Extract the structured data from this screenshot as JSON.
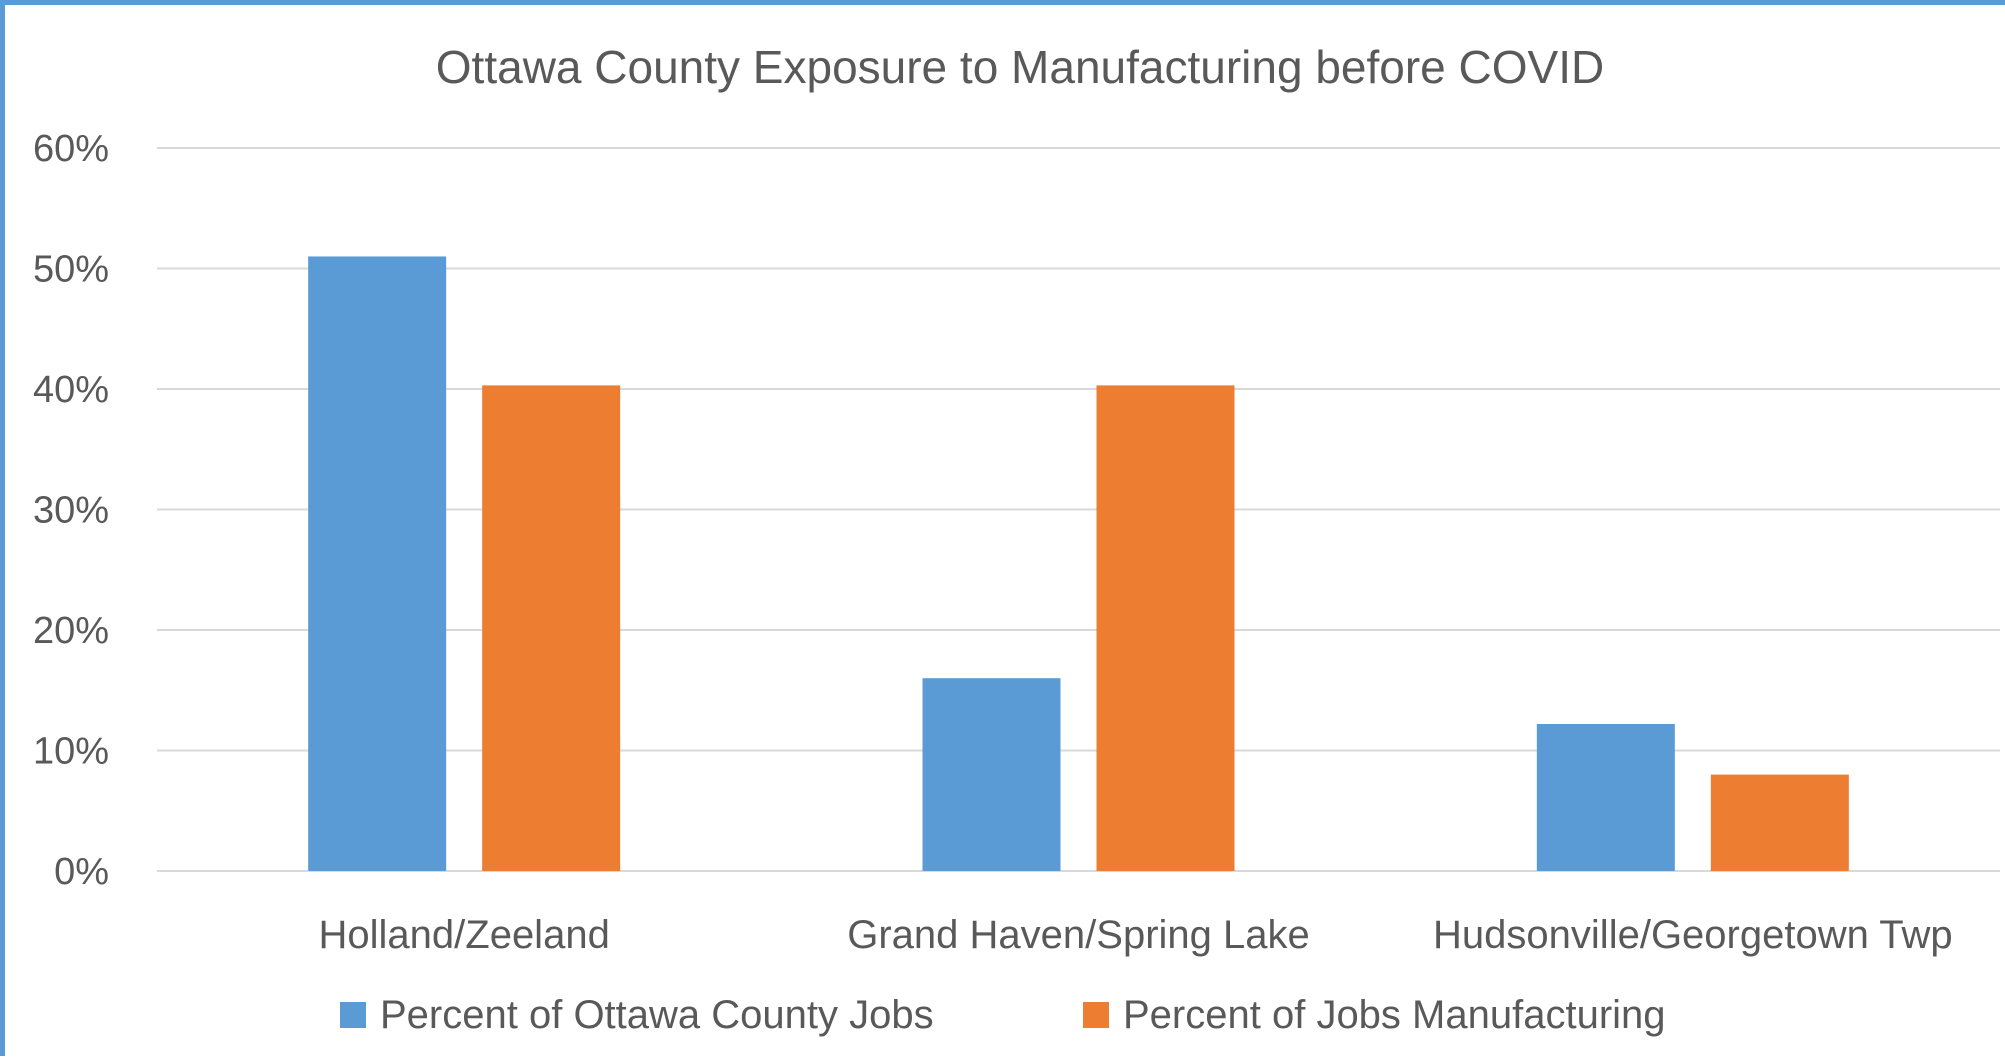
{
  "chart_data": {
    "type": "bar",
    "title": "Ottawa County Exposure to Manufacturing before COVID",
    "xlabel": "",
    "ylabel": "",
    "categories": [
      "Holland/Zeeland",
      "Grand Haven/Spring Lake",
      "Hudsonville/Georgetown Twp"
    ],
    "series": [
      {
        "name": "Percent of Ottawa County Jobs",
        "values": [
          0.51,
          0.16,
          0.122
        ],
        "color": "#5b9bd5"
      },
      {
        "name": "Percent of Jobs Manufacturing",
        "values": [
          0.403,
          0.403,
          0.08
        ],
        "color": "#ed7d31"
      }
    ],
    "ylim": [
      0,
      0.6
    ],
    "yticks": [
      0,
      0.1,
      0.2,
      0.3,
      0.4,
      0.5,
      0.6
    ],
    "ytick_labels": [
      "0%",
      "10%",
      "20%",
      "30%",
      "40%",
      "50%",
      "60%"
    ],
    "grid": true,
    "gridline_color": "#d9d9d9",
    "legend_position": "bottom"
  }
}
